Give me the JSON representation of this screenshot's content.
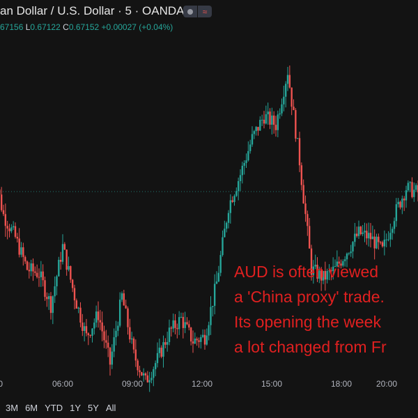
{
  "header": {
    "title": "an Dollar / U.S. Dollar · 5 · OANDA",
    "ohlc": {
      "open_val": "67156",
      "low_label": "L",
      "low_val": "0.67122",
      "close_label": "C",
      "close_val": "0.67152",
      "change_val": "+0.00027 (+0.04%)"
    },
    "badge_icons": [
      "status-dot-icon",
      "wave-icon"
    ]
  },
  "colors": {
    "up": "#26a69a",
    "down": "#ef5350",
    "background": "#131313",
    "annotation": "#e02020",
    "dotted_line": "#26a69a"
  },
  "annotation": {
    "lines": [
      "AUD is often viewed",
      "a 'China proxy' trade.",
      "Its opening the week",
      "a lot changed from Fr"
    ]
  },
  "time_ranges": [
    "3M",
    "6M",
    "YTD",
    "1Y",
    "5Y",
    "All"
  ],
  "chart_data": {
    "type": "candlestick",
    "x_tick_labels": [
      "0",
      "06:00",
      "09:00",
      "12:00",
      "15:00",
      "18:00",
      "20:00"
    ],
    "current_price": 0.67152,
    "ylim": [
      0.6675,
      0.675
    ],
    "grid": false,
    "close_series": [
      {
        "t": "03:00",
        "close": 0.6722
      },
      {
        "t": "03:30",
        "close": 0.671
      },
      {
        "t": "04:00",
        "close": 0.6705
      },
      {
        "t": "04:30",
        "close": 0.6698
      },
      {
        "t": "05:00",
        "close": 0.6697
      },
      {
        "t": "05:30",
        "close": 0.669
      },
      {
        "t": "06:00",
        "close": 0.6703
      },
      {
        "t": "06:30",
        "close": 0.6692
      },
      {
        "t": "07:00",
        "close": 0.6683
      },
      {
        "t": "07:30",
        "close": 0.6688
      },
      {
        "t": "08:00",
        "close": 0.6677
      },
      {
        "t": "08:30",
        "close": 0.6692
      },
      {
        "t": "09:00",
        "close": 0.6679
      },
      {
        "t": "09:30",
        "close": 0.6673
      },
      {
        "t": "10:00",
        "close": 0.6678
      },
      {
        "t": "10:30",
        "close": 0.6684
      },
      {
        "t": "11:00",
        "close": 0.6687
      },
      {
        "t": "11:30",
        "close": 0.6682
      },
      {
        "t": "12:00",
        "close": 0.6683
      },
      {
        "t": "12:30",
        "close": 0.6695
      },
      {
        "t": "13:00",
        "close": 0.6712
      },
      {
        "t": "13:30",
        "close": 0.6719
      },
      {
        "t": "14:00",
        "close": 0.6727
      },
      {
        "t": "14:30",
        "close": 0.6732
      },
      {
        "t": "15:00",
        "close": 0.673
      },
      {
        "t": "15:15",
        "close": 0.6736
      },
      {
        "t": "15:30",
        "close": 0.6742
      },
      {
        "t": "16:00",
        "close": 0.6722
      },
      {
        "t": "16:30",
        "close": 0.6698
      },
      {
        "t": "17:00",
        "close": 0.6696
      },
      {
        "t": "17:30",
        "close": 0.6698
      },
      {
        "t": "18:00",
        "close": 0.6702
      },
      {
        "t": "18:30",
        "close": 0.6706
      },
      {
        "t": "19:00",
        "close": 0.6705
      },
      {
        "t": "19:30",
        "close": 0.6702
      },
      {
        "t": "20:00",
        "close": 0.671
      },
      {
        "t": "20:30",
        "close": 0.6716
      },
      {
        "t": "21:00",
        "close": 0.6715
      }
    ]
  }
}
